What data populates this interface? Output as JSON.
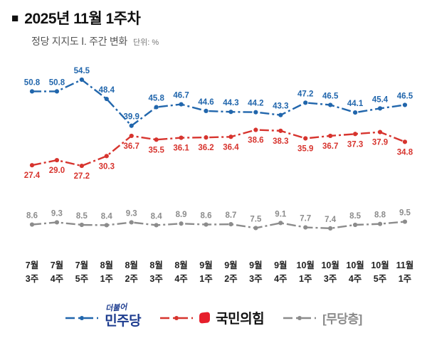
{
  "header": {
    "bullet": "■",
    "title": "2025년 11월 1주차",
    "subtitle": "정당 지지도 Ⅰ. 주간 변화",
    "unit_label": "단위: %"
  },
  "chart_data": {
    "type": "line",
    "title": "정당 지지도 Ⅰ. 주간 변화",
    "unit": "%",
    "grid": false,
    "legend_position": "bottom",
    "line_style": "dash-dot",
    "ylim": [
      0,
      60
    ],
    "categories": [
      "7월 3주",
      "7월 4주",
      "7월 5주",
      "8월 1주",
      "8월 2주",
      "8월 3주",
      "8월 4주",
      "9월 1주",
      "9월 2주",
      "9월 3주",
      "9월 4주",
      "10월 1주",
      "10월 3주",
      "10월 4주",
      "10월 5주",
      "11월 1주"
    ],
    "series": [
      {
        "name": "민주당",
        "color": "#2166ac",
        "label_position": "above",
        "values": [
          50.8,
          50.8,
          54.5,
          48.4,
          39.9,
          45.8,
          46.7,
          44.6,
          44.3,
          44.2,
          43.3,
          47.2,
          46.5,
          44.1,
          45.4,
          46.5
        ]
      },
      {
        "name": "국민의힘",
        "color": "#d7342e",
        "label_position": "below",
        "values": [
          27.4,
          29.0,
          27.2,
          30.3,
          36.7,
          35.5,
          36.1,
          36.2,
          36.4,
          38.6,
          38.3,
          35.9,
          36.7,
          37.3,
          37.9,
          34.8
        ]
      },
      {
        "name": "무당층",
        "color": "#8c8c8c",
        "label_position": "above",
        "values": [
          8.6,
          9.3,
          8.5,
          8.4,
          9.3,
          8.4,
          8.9,
          8.6,
          8.7,
          7.5,
          9.1,
          7.7,
          7.4,
          8.5,
          8.8,
          9.5
        ]
      }
    ]
  },
  "legend": {
    "minjoo_prefix": "더불어",
    "minjoo_label": "민주당",
    "ppp_label": "국민의힘",
    "independent_label": "[무당층]"
  }
}
